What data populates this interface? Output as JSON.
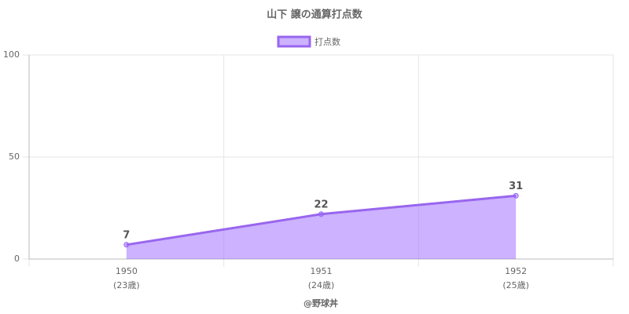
{
  "chart_data": {
    "type": "line",
    "title": "山下 譲の通算打点数",
    "x_label": "@野球丼",
    "categories": [
      [
        "1950",
        "(23歳)"
      ],
      [
        "1951",
        "(24歳)"
      ],
      [
        "1952",
        "(25歳)"
      ]
    ],
    "series": [
      {
        "name": "打点数",
        "color": "#9966ee",
        "fill": "rgba(153,102,255,0.5)",
        "values": [
          7,
          22,
          31
        ]
      }
    ],
    "ylim": [
      0,
      100
    ],
    "yticks": [
      0,
      50,
      100
    ],
    "grid": true,
    "legend": "top"
  }
}
